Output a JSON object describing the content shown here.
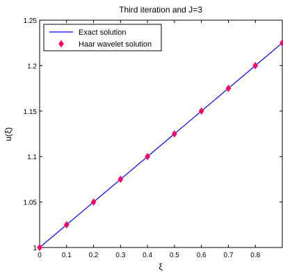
{
  "chart_data": {
    "type": "line",
    "title": "Third iteration and J=3",
    "xlabel": "ξ",
    "ylabel": "u(ξ)",
    "xlim": [
      0,
      0.9
    ],
    "ylim": [
      1,
      1.25
    ],
    "xticks": [
      "0",
      "0.1",
      "0.2",
      "0.3",
      "0.4",
      "0.5",
      "0.6",
      "0.7",
      "0.8"
    ],
    "yticks": [
      "1",
      "1.05",
      "1.1",
      "1.15",
      "1.2",
      "1.25"
    ],
    "legend_position": "top-left",
    "grid": false,
    "series": [
      {
        "name": "Exact solution",
        "style": "line",
        "color": "#0000ff",
        "x": [
          0,
          0.9
        ],
        "y": [
          1.0,
          1.225
        ]
      },
      {
        "name": "Haar wavelet solution",
        "style": "diamond-markers",
        "color": "#ff0066",
        "x": [
          0,
          0.1,
          0.2,
          0.3,
          0.4,
          0.5,
          0.6,
          0.7,
          0.8,
          0.9
        ],
        "y": [
          1.0,
          1.025,
          1.05,
          1.075,
          1.1,
          1.125,
          1.15,
          1.175,
          1.2,
          1.225
        ]
      }
    ]
  }
}
